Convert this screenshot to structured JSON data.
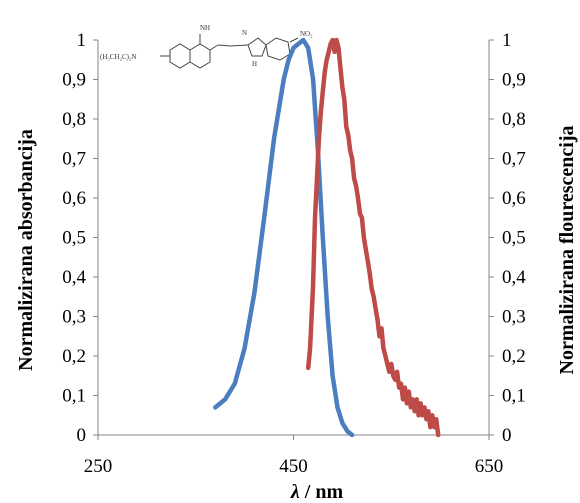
{
  "chart_data": {
    "type": "line",
    "xlabel_italic": "λ",
    "xlabel_rest": " / nm",
    "ylabel_left": "Normalizirana absorbancija",
    "ylabel_right": "Normalizirana flourescencija",
    "xlim": [
      250,
      650
    ],
    "ylim": [
      0,
      1
    ],
    "x_ticks": [
      250,
      450,
      650
    ],
    "y_ticks": [
      0,
      0.1,
      0.2,
      0.3,
      0.4,
      0.5,
      0.6,
      0.7,
      0.8,
      0.9,
      1
    ],
    "y_tick_labels": [
      "0",
      "0,1",
      "0,2",
      "0,3",
      "0,4",
      "0,5",
      "0,6",
      "0,7",
      "0,8",
      "0,9",
      "1"
    ],
    "series": [
      {
        "color": "#4a7ebf",
        "x": [
          370,
          380,
          390,
          400,
          410,
          420,
          430,
          440,
          445,
          450,
          455,
          460,
          465,
          470,
          475,
          480,
          485,
          490,
          495,
          500,
          505,
          510
        ],
        "y": [
          0.07,
          0.09,
          0.13,
          0.22,
          0.36,
          0.55,
          0.75,
          0.9,
          0.95,
          0.98,
          0.99,
          1.0,
          0.98,
          0.9,
          0.72,
          0.5,
          0.3,
          0.15,
          0.07,
          0.03,
          0.01,
          0.0
        ]
      },
      {
        "color": "#be4b48",
        "x": [
          465,
          467,
          470,
          472,
          474,
          476,
          478,
          480,
          482,
          484,
          486,
          488,
          490,
          492,
          494,
          496,
          498,
          500,
          502,
          504,
          506,
          508,
          510,
          512,
          514,
          516,
          518,
          520,
          522,
          524,
          526,
          528,
          530,
          532,
          534,
          536,
          538,
          540,
          542,
          544,
          546,
          548,
          550,
          552,
          554,
          556,
          558,
          560,
          562,
          564,
          566,
          568,
          570,
          572,
          574,
          576,
          578,
          580,
          582,
          584,
          586,
          588,
          590,
          592,
          594,
          596,
          598
        ],
        "y": [
          0.17,
          0.22,
          0.38,
          0.55,
          0.65,
          0.75,
          0.82,
          0.87,
          0.92,
          0.95,
          0.97,
          0.99,
          1.0,
          0.97,
          1.0,
          0.98,
          0.93,
          0.88,
          0.85,
          0.78,
          0.76,
          0.72,
          0.7,
          0.65,
          0.63,
          0.6,
          0.56,
          0.55,
          0.5,
          0.47,
          0.44,
          0.41,
          0.37,
          0.35,
          0.32,
          0.29,
          0.25,
          0.27,
          0.22,
          0.2,
          0.18,
          0.16,
          0.18,
          0.15,
          0.14,
          0.16,
          0.12,
          0.13,
          0.09,
          0.12,
          0.08,
          0.11,
          0.07,
          0.09,
          0.06,
          0.09,
          0.05,
          0.08,
          0.05,
          0.07,
          0.04,
          0.06,
          0.02,
          0.05,
          0.02,
          0.04,
          0.0
        ]
      }
    ]
  },
  "structure_labels": {
    "amine": "(H₃CH₂C)₂N",
    "imine": "NH",
    "nitro": "NO₂",
    "nh": "H",
    "n_top": "N"
  }
}
